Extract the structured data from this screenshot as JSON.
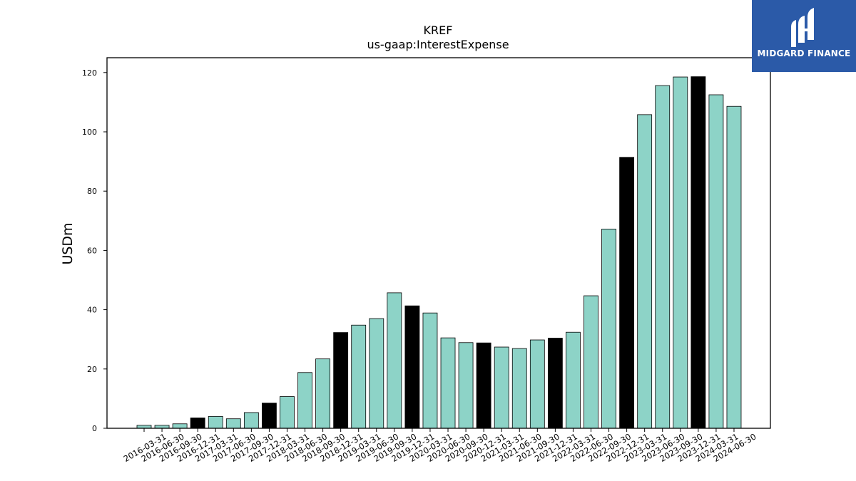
{
  "chart_data": {
    "type": "bar",
    "title": "KREF",
    "subtitle": "us-gaap:InterestExpense",
    "xlabel": "",
    "ylabel": "USDm",
    "ylim": [
      0,
      125
    ],
    "yticks": [
      "0",
      "20",
      "40",
      "60",
      "80",
      "100",
      "120"
    ],
    "grid": false,
    "categories": [
      "2016-03-31",
      "2016-06-30",
      "2016-09-30",
      "2016-12-31",
      "2017-03-31",
      "2017-06-30",
      "2017-09-30",
      "2017-12-31",
      "2018-03-31",
      "2018-06-30",
      "2018-09-30",
      "2018-12-31",
      "2019-03-31",
      "2019-06-30",
      "2019-09-30",
      "2019-12-31",
      "2020-03-31",
      "2020-06-30",
      "2020-09-30",
      "2020-12-31",
      "2021-03-31",
      "2021-06-30",
      "2021-09-30",
      "2021-12-31",
      "2022-03-31",
      "2022-06-30",
      "2022-09-30",
      "2022-12-31",
      "2023-03-31",
      "2023-06-30",
      "2023-09-30",
      "2023-12-31",
      "2024-03-31",
      "2024-06-30"
    ],
    "values": [
      1.0,
      1.0,
      1.5,
      3.5,
      4.0,
      3.2,
      5.3,
      8.5,
      10.7,
      18.8,
      23.4,
      32.3,
      34.8,
      37.0,
      45.7,
      41.3,
      38.9,
      30.5,
      28.9,
      28.8,
      27.4,
      26.9,
      29.8,
      30.4,
      32.4,
      44.7,
      67.2,
      91.4,
      105.8,
      115.6,
      118.5,
      118.6,
      112.5,
      108.6
    ],
    "highlighted": [
      false,
      false,
      false,
      true,
      false,
      false,
      false,
      true,
      false,
      false,
      false,
      true,
      false,
      false,
      false,
      true,
      false,
      false,
      false,
      true,
      false,
      false,
      false,
      true,
      false,
      false,
      false,
      true,
      false,
      false,
      false,
      true,
      false,
      false
    ],
    "colors": {
      "bar": "#8dd3c7",
      "highlight": "#000000",
      "edge": "#000000"
    }
  },
  "logo": {
    "text": "MIDGARD FINANCE",
    "background": "#2b5aa8"
  }
}
